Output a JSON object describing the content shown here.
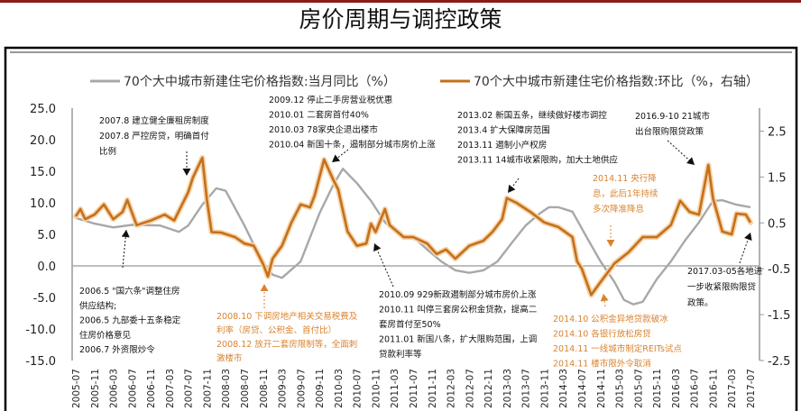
{
  "page": {
    "title": "房价周期与调控政策"
  },
  "colors": {
    "yoy": "#a8a8a8",
    "mom": "#c4701c",
    "annotation_black": "#111111",
    "annotation_orange": "#d9832f",
    "top_bar": "#8b1a1a"
  },
  "chart_data": {
    "type": "line",
    "title": "房价周期与调控政策",
    "xlabel": "",
    "ylabel": "",
    "x_ticks": [
      "2005-07",
      "2005-11",
      "2006-03",
      "2006-07",
      "2006-11",
      "2007-03",
      "2007-07",
      "2007-11",
      "2008-03",
      "2008-07",
      "2008-11",
      "2009-03",
      "2009-07",
      "2009-11",
      "2010-03",
      "2010-07",
      "2010-11",
      "2011-03",
      "2011-07",
      "2011-11",
      "2012-03",
      "2012-07",
      "2012-11",
      "2013-03",
      "2013-07",
      "2013-11",
      "2014-03",
      "2014-07",
      "2014-11",
      "2015-03",
      "2015-07",
      "2015-11",
      "2016-03",
      "2016-07",
      "2016-11",
      "2017-03",
      "2017-07"
    ],
    "y_left": {
      "ylim": [
        -15,
        25
      ],
      "ticks": [
        "25.0",
        "20.0",
        "15.0",
        "10.0",
        "5.0",
        "0.0",
        "-5.0",
        "-10.0",
        "-15.0"
      ]
    },
    "y_right": {
      "ylim": [
        -2.5,
        3.0
      ],
      "ticks": [
        "2.5",
        "1.5",
        "0.5",
        "-0.5",
        "-1.5",
        "-2.5"
      ]
    },
    "legend_placement": "top",
    "series": [
      {
        "name": "70个大中城市新建住宅价格指数:当月同比（%）",
        "axis": "left",
        "color": "#a8a8a8",
        "points": [
          [
            "2005-07",
            7.6
          ],
          [
            "2005-11",
            6.7
          ],
          [
            "2006-03",
            6.1
          ],
          [
            "2006-07",
            6.5
          ],
          [
            "2007-01",
            6.4
          ],
          [
            "2007-05",
            5.4
          ],
          [
            "2007-07",
            6.4
          ],
          [
            "2007-10",
            9.7
          ],
          [
            "2008-01",
            12.3
          ],
          [
            "2008-03",
            11.9
          ],
          [
            "2008-07",
            6.4
          ],
          [
            "2008-11",
            0.3
          ],
          [
            "2009-01",
            -1.4
          ],
          [
            "2009-03",
            -1.9
          ],
          [
            "2009-07",
            0.7
          ],
          [
            "2009-11",
            8.3
          ],
          [
            "2010-02",
            12.9
          ],
          [
            "2010-04",
            15.4
          ],
          [
            "2010-07",
            13.1
          ],
          [
            "2010-10",
            10.3
          ],
          [
            "2011-01",
            6.9
          ],
          [
            "2011-04",
            5.0
          ],
          [
            "2011-07",
            4.6
          ],
          [
            "2011-10",
            2.6
          ],
          [
            "2012-01",
            0.7
          ],
          [
            "2012-04",
            -0.7
          ],
          [
            "2012-07",
            -1.1
          ],
          [
            "2012-10",
            -0.7
          ],
          [
            "2013-01",
            0.7
          ],
          [
            "2013-04",
            3.6
          ],
          [
            "2013-07",
            6.4
          ],
          [
            "2013-10",
            8.3
          ],
          [
            "2013-12",
            9.3
          ],
          [
            "2014-02",
            9.3
          ],
          [
            "2014-05",
            8.6
          ],
          [
            "2014-08",
            4.6
          ],
          [
            "2014-11",
            0.7
          ],
          [
            "2015-02",
            -2.6
          ],
          [
            "2015-04",
            -5.4
          ],
          [
            "2015-06",
            -6.1
          ],
          [
            "2015-08",
            -5.7
          ],
          [
            "2015-11",
            -2.1
          ],
          [
            "2016-02",
            0.7
          ],
          [
            "2016-05",
            4.0
          ],
          [
            "2016-08",
            6.9
          ],
          [
            "2016-11",
            10.3
          ],
          [
            "2017-01",
            10.4
          ],
          [
            "2017-04",
            9.7
          ],
          [
            "2017-07",
            9.3
          ]
        ]
      },
      {
        "name": "70个大中城市新建住宅价格指数:环比（%，右轴）",
        "axis": "right",
        "color": "#c4701c",
        "points": [
          [
            "2005-07",
            0.64
          ],
          [
            "2005-08",
            0.8
          ],
          [
            "2005-09",
            0.58
          ],
          [
            "2005-11",
            0.68
          ],
          [
            "2006-01",
            0.9
          ],
          [
            "2006-03",
            0.58
          ],
          [
            "2006-05",
            0.74
          ],
          [
            "2006-06",
            1.0
          ],
          [
            "2006-08",
            0.45
          ],
          [
            "2006-11",
            0.55
          ],
          [
            "2007-02",
            0.68
          ],
          [
            "2007-04",
            0.55
          ],
          [
            "2007-07",
            1.17
          ],
          [
            "2007-08",
            1.49
          ],
          [
            "2007-10",
            1.92
          ],
          [
            "2007-11",
            1.0
          ],
          [
            "2007-12",
            0.3
          ],
          [
            "2008-02",
            0.29
          ],
          [
            "2008-05",
            0.19
          ],
          [
            "2008-07",
            0.05
          ],
          [
            "2008-09",
            0.0
          ],
          [
            "2008-11",
            -0.4
          ],
          [
            "2008-12",
            -0.67
          ],
          [
            "2009-01",
            -0.28
          ],
          [
            "2009-03",
            0.0
          ],
          [
            "2009-05",
            0.5
          ],
          [
            "2009-07",
            0.9
          ],
          [
            "2009-09",
            0.84
          ],
          [
            "2009-10",
            1.1
          ],
          [
            "2009-12",
            1.88
          ],
          [
            "2010-02",
            1.43
          ],
          [
            "2010-03",
            1.23
          ],
          [
            "2010-05",
            0.31
          ],
          [
            "2010-07",
            0.0
          ],
          [
            "2010-09",
            0.05
          ],
          [
            "2010-10",
            0.48
          ],
          [
            "2010-11",
            0.3
          ],
          [
            "2011-01",
            0.8
          ],
          [
            "2011-02",
            0.45
          ],
          [
            "2011-05",
            0.19
          ],
          [
            "2011-07",
            0.19
          ],
          [
            "2011-10",
            0.05
          ],
          [
            "2011-12",
            -0.18
          ],
          [
            "2012-02",
            -0.08
          ],
          [
            "2012-04",
            -0.28
          ],
          [
            "2012-07",
            0.0
          ],
          [
            "2012-10",
            0.11
          ],
          [
            "2012-12",
            0.31
          ],
          [
            "2013-02",
            0.58
          ],
          [
            "2013-03",
            1.04
          ],
          [
            "2013-05",
            0.94
          ],
          [
            "2013-08",
            0.74
          ],
          [
            "2013-11",
            0.51
          ],
          [
            "2014-02",
            0.41
          ],
          [
            "2014-05",
            0.19
          ],
          [
            "2014-06",
            -0.34
          ],
          [
            "2014-07",
            -0.5
          ],
          [
            "2014-09",
            -1.07
          ],
          [
            "2014-11",
            -0.79
          ],
          [
            "2015-02",
            -0.38
          ],
          [
            "2015-05",
            -0.14
          ],
          [
            "2015-08",
            0.19
          ],
          [
            "2015-11",
            0.19
          ],
          [
            "2016-02",
            0.45
          ],
          [
            "2016-04",
            0.98
          ],
          [
            "2016-06",
            0.74
          ],
          [
            "2016-08",
            0.68
          ],
          [
            "2016-10",
            1.76
          ],
          [
            "2016-11",
            1.04
          ],
          [
            "2017-01",
            0.31
          ],
          [
            "2017-03",
            0.25
          ],
          [
            "2017-04",
            0.7
          ],
          [
            "2017-06",
            0.68
          ],
          [
            "2017-07",
            0.51
          ]
        ]
      }
    ],
    "annotations": [
      {
        "color": "black",
        "lines": [
          "2007.8  建立健全廉租房制度",
          "2007.8  严控房贷，明确首付",
          "比例"
        ]
      },
      {
        "color": "black",
        "lines": [
          "2009.12 停止二手房营业税优惠",
          "2010.01 二套房首付40%",
          "2010.03 78家央企退出楼市",
          "2010.04 新国十条，遏制部分城市房价上涨"
        ]
      },
      {
        "color": "black",
        "lines": [
          "2013.02 新国五条，继续做好楼市调控",
          "2013.4 扩大保障房范围",
          "2013.11 遏制小产权房",
          "2013.11 14城市收紧限购，加大土地供应"
        ]
      },
      {
        "color": "black",
        "lines": [
          "2016.9-10 21城市",
          "出台限购限贷政策"
        ]
      },
      {
        "color": "orange",
        "lines": [
          "2014.11 央行降",
          "息，此后1年持续",
          "多次降准降息"
        ]
      },
      {
        "color": "black",
        "lines": [
          "2006.5 \"国六条\"调整住房",
          "供应结构;",
          "2006.5  九部委十五条稳定",
          "住房价格意见",
          "2006.7  外资限炒令"
        ]
      },
      {
        "color": "orange",
        "lines": [
          "2008.10 下调房地产相关交易税费及",
          "利率（房贷、公积金、首付比）",
          "2008.12 放开二套房限制等，全面刺",
          "激楼市"
        ]
      },
      {
        "color": "black",
        "lines": [
          "2010.09 929新政遏制部分城市房价上涨",
          "2010.11 叫停三套房公积金贷款，提高二",
          "套房首付至50%",
          "2011.01 新国八条，扩大限购范围，上调",
          "贷款利率等"
        ]
      },
      {
        "color": "orange",
        "lines": [
          "2014.10 公积金异地贷款破冰",
          "2014.10 各银行放松房贷",
          "2014.11 一线城市制定REITs试点",
          "2014.11 楼市限外令取消"
        ]
      },
      {
        "color": "black",
        "lines": [
          "2017.03-05各地进",
          "一步收紧限购限贷",
          "政策。"
        ]
      }
    ]
  }
}
